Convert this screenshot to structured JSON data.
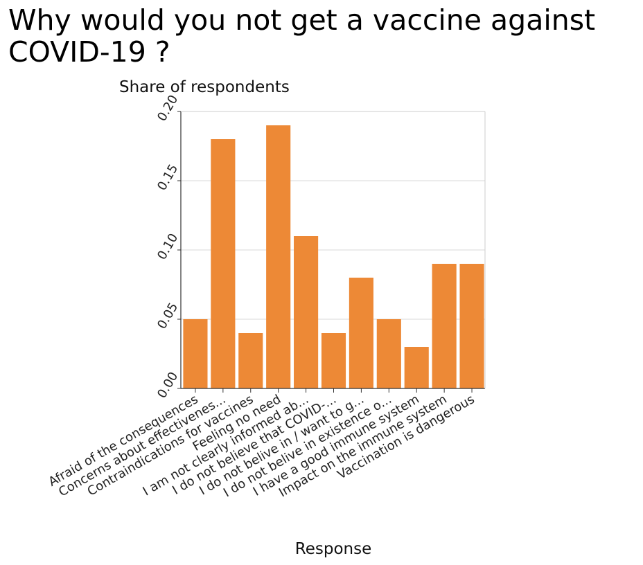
{
  "chart_data": {
    "type": "bar",
    "title": "Why would you not get a vaccine against COVID-19 ?",
    "xlabel": "Response",
    "ylabel": "Share of respondents",
    "ylim": [
      0,
      0.2
    ],
    "yticks": [
      "0.00",
      "0.05",
      "0.10",
      "0.15",
      "0.20"
    ],
    "grid": true,
    "bar_color": "#ed8936",
    "categories": [
      "Afraid of the consequences",
      "Concerns about effectivenes...",
      "Contraindications for vaccines",
      "Feeling no need",
      "I am not clearly informed ab...",
      "I do not believe that COVID-...",
      "I do not belive in / want to g...",
      "I do not belive in existence o...",
      "I have a good immune system",
      "Impact on the immune system",
      "Vaccination is dangerous"
    ],
    "values": [
      0.05,
      0.18,
      0.04,
      0.19,
      0.11,
      0.04,
      0.08,
      0.05,
      0.03,
      0.09,
      0.09
    ]
  }
}
